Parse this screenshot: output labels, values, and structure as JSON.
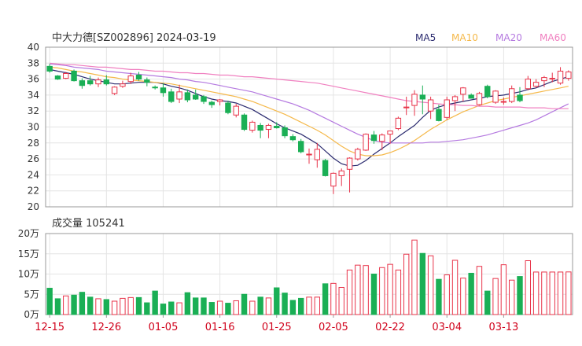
{
  "header": {
    "title": "中大力德[SZ002896] 2024-03-19",
    "legend": [
      {
        "label": "MA5",
        "color": "#2b2b6f"
      },
      {
        "label": "MA10",
        "color": "#f5b94b"
      },
      {
        "label": "MA20",
        "color": "#b57ae0"
      },
      {
        "label": "MA60",
        "color": "#f080c0"
      }
    ]
  },
  "volume_panel": {
    "label": "成交量 105241"
  },
  "colors": {
    "up": "#e8344a",
    "down": "#1aaf55",
    "date": "#d0021b"
  },
  "chart_data": [
    {
      "type": "candlestick",
      "title": "中大力德[SZ002896] 2024-03-19",
      "ylim": [
        20,
        40
      ],
      "yticks": [
        20,
        22,
        24,
        26,
        28,
        30,
        32,
        34,
        36,
        38,
        40
      ],
      "xticks": [
        "12-15",
        "12-26",
        "01-05",
        "01-16",
        "01-25",
        "02-05",
        "02-22",
        "03-04",
        "03-13"
      ],
      "xtick_index": [
        0,
        7,
        14,
        21,
        28,
        35,
        42,
        49,
        56
      ],
      "ohlc": [
        [
          37.6,
          37.9,
          36.8,
          37.0
        ],
        [
          36.4,
          36.5,
          35.9,
          36.0
        ],
        [
          36.1,
          36.9,
          36.0,
          36.7
        ],
        [
          37.0,
          37.2,
          35.7,
          35.8
        ],
        [
          35.8,
          36.1,
          34.8,
          35.2
        ],
        [
          35.8,
          36.4,
          35.2,
          35.4
        ],
        [
          35.4,
          36.2,
          35.0,
          35.9
        ],
        [
          35.9,
          36.5,
          35.2,
          35.4
        ],
        [
          34.2,
          35.1,
          34.0,
          35.0
        ],
        [
          35.1,
          35.8,
          34.9,
          35.4
        ],
        [
          35.7,
          36.8,
          35.4,
          36.4
        ],
        [
          36.5,
          36.9,
          35.8,
          36.0
        ],
        [
          35.9,
          36.2,
          35.1,
          35.6
        ],
        [
          35.0,
          35.2,
          34.7,
          34.9
        ],
        [
          34.9,
          35.5,
          33.8,
          34.3
        ],
        [
          34.4,
          34.8,
          33.0,
          33.2
        ],
        [
          33.5,
          35.3,
          33.0,
          34.4
        ],
        [
          34.3,
          34.7,
          33.1,
          33.4
        ],
        [
          34.0,
          34.7,
          33.4,
          33.5
        ],
        [
          33.8,
          34.0,
          32.9,
          33.2
        ],
        [
          33.1,
          33.3,
          32.4,
          32.8
        ],
        [
          33.2,
          33.5,
          32.7,
          33.4
        ],
        [
          33.0,
          33.3,
          31.6,
          31.8
        ],
        [
          31.5,
          32.9,
          31.2,
          32.6
        ],
        [
          31.5,
          31.7,
          29.5,
          29.7
        ],
        [
          29.6,
          30.8,
          29.3,
          30.6
        ],
        [
          30.2,
          30.5,
          28.6,
          29.6
        ],
        [
          29.7,
          30.4,
          28.6,
          30.2
        ],
        [
          30.1,
          30.6,
          29.8,
          29.9
        ],
        [
          29.9,
          30.2,
          28.6,
          28.9
        ],
        [
          28.8,
          29.1,
          28.2,
          28.4
        ],
        [
          28.2,
          28.5,
          26.7,
          26.9
        ],
        [
          26.5,
          27.3,
          25.4,
          26.6
        ],
        [
          25.9,
          28.0,
          24.9,
          27.2
        ],
        [
          25.8,
          26.0,
          23.8,
          23.9
        ],
        [
          22.6,
          24.3,
          21.6,
          24.2
        ],
        [
          23.9,
          24.8,
          22.6,
          24.5
        ],
        [
          24.7,
          26.2,
          21.8,
          26.1
        ],
        [
          26.0,
          27.4,
          25.8,
          27.2
        ],
        [
          27.1,
          29.2,
          27.0,
          29.1
        ],
        [
          29.0,
          29.5,
          27.9,
          28.3
        ],
        [
          28.2,
          29.2,
          27.1,
          29.0
        ],
        [
          29.1,
          29.5,
          27.9,
          29.5
        ],
        [
          29.8,
          31.3,
          29.6,
          31.1
        ],
        [
          32.4,
          33.8,
          31.5,
          32.5
        ],
        [
          32.7,
          34.6,
          31.4,
          34.1
        ],
        [
          34.0,
          35.2,
          31.6,
          33.5
        ],
        [
          32.0,
          33.8,
          31.0,
          33.4
        ],
        [
          32.2,
          32.8,
          30.7,
          30.8
        ],
        [
          31.2,
          33.8,
          30.9,
          33.4
        ],
        [
          33.3,
          34.0,
          32.0,
          33.8
        ],
        [
          34.1,
          35.0,
          33.2,
          34.9
        ],
        [
          34.0,
          34.2,
          33.6,
          33.6
        ],
        [
          32.8,
          34.4,
          32.7,
          34.2
        ],
        [
          35.1,
          35.3,
          33.6,
          33.8
        ],
        [
          33.1,
          34.6,
          32.9,
          34.5
        ],
        [
          33.1,
          33.7,
          32.8,
          33.2
        ],
        [
          33.2,
          35.2,
          33.0,
          34.8
        ],
        [
          34.0,
          35.0,
          33.1,
          33.3
        ],
        [
          34.8,
          36.4,
          34.6,
          36.0
        ],
        [
          35.1,
          36.0,
          34.9,
          35.6
        ],
        [
          35.8,
          36.4,
          35.0,
          36.2
        ],
        [
          36.1,
          36.8,
          35.6,
          36.1
        ],
        [
          35.5,
          37.5,
          35.3,
          37.0
        ],
        [
          36.1,
          37.1,
          35.8,
          36.9
        ]
      ],
      "volume_ylim": [
        0,
        200000
      ],
      "volume_ytick_labels": [
        "0万",
        "5万",
        "10万",
        "15万",
        "20万"
      ],
      "volume_yticks": [
        0,
        50000,
        100000,
        150000,
        200000
      ],
      "volume": [
        65000,
        39000,
        46000,
        48000,
        55000,
        43000,
        39000,
        37000,
        33000,
        40000,
        42000,
        42000,
        29000,
        58000,
        26000,
        31000,
        29000,
        54000,
        41000,
        41000,
        30000,
        33000,
        28000,
        34000,
        50000,
        33000,
        43000,
        41000,
        66000,
        53000,
        35000,
        40000,
        43000,
        43000,
        76000,
        77000,
        67000,
        110000,
        122000,
        121000,
        100000,
        116000,
        124000,
        110000,
        149000,
        184000,
        151000,
        145000,
        87000,
        98000,
        134000,
        90000,
        102000,
        119000,
        58000,
        89000,
        123000,
        85000,
        94000,
        133000,
        105000,
        105000,
        105000,
        105000,
        105241
      ],
      "series": [
        {
          "name": "MA5",
          "values": [
            37.2,
            37.0,
            36.8,
            36.6,
            36.3,
            36.0,
            35.8,
            35.6,
            35.4,
            35.4,
            35.5,
            35.6,
            35.6,
            35.6,
            35.4,
            35.1,
            34.9,
            34.6,
            34.2,
            33.8,
            33.5,
            33.3,
            33.2,
            33.0,
            32.6,
            32.2,
            31.6,
            31.0,
            30.4,
            29.9,
            29.5,
            29.1,
            28.5,
            27.9,
            27.0,
            26.1,
            25.4,
            25.1,
            25.2,
            25.8,
            26.6,
            27.3,
            28.0,
            28.8,
            29.5,
            30.2,
            31.2,
            32.1,
            32.5,
            32.8,
            33.0,
            33.2,
            33.4,
            33.6,
            33.8,
            33.9,
            34.0,
            34.2,
            34.4,
            34.7,
            34.9,
            35.3,
            35.7,
            36.0,
            36.3
          ]
        },
        {
          "name": "MA10",
          "values": [
            37.5,
            37.4,
            37.2,
            37.0,
            36.9,
            36.7,
            36.5,
            36.3,
            36.2,
            36.0,
            35.9,
            35.8,
            35.7,
            35.6,
            35.5,
            35.4,
            35.2,
            35.0,
            34.8,
            34.6,
            34.4,
            34.2,
            34.0,
            33.8,
            33.5,
            33.2,
            32.8,
            32.4,
            32.0,
            31.6,
            31.1,
            30.6,
            30.1,
            29.6,
            29.0,
            28.3,
            27.6,
            27.0,
            26.6,
            26.4,
            26.4,
            26.5,
            26.8,
            27.2,
            27.7,
            28.3,
            29.0,
            29.7,
            30.3,
            30.9,
            31.4,
            31.9,
            32.3,
            32.7,
            33.0,
            33.3,
            33.5,
            33.7,
            33.9,
            34.1,
            34.3,
            34.5,
            34.7,
            34.9,
            35.1
          ]
        },
        {
          "name": "MA20",
          "values": [
            37.9,
            37.8,
            37.7,
            37.5,
            37.4,
            37.3,
            37.2,
            37.0,
            36.9,
            36.8,
            36.7,
            36.6,
            36.5,
            36.4,
            36.3,
            36.2,
            36.0,
            35.9,
            35.7,
            35.6,
            35.4,
            35.2,
            35.0,
            34.8,
            34.6,
            34.4,
            34.1,
            33.8,
            33.5,
            33.2,
            32.9,
            32.5,
            32.1,
            31.6,
            31.1,
            30.6,
            30.1,
            29.6,
            29.1,
            28.7,
            28.3,
            28.1,
            28.0,
            28.0,
            28.0,
            28.0,
            28.0,
            28.1,
            28.1,
            28.2,
            28.3,
            28.4,
            28.6,
            28.8,
            29.0,
            29.3,
            29.6,
            29.9,
            30.2,
            30.5,
            30.9,
            31.4,
            31.9,
            32.4,
            32.9
          ]
        },
        {
          "name": "MA60",
          "values": [
            38.0,
            37.9,
            37.8,
            37.8,
            37.7,
            37.6,
            37.5,
            37.5,
            37.4,
            37.3,
            37.2,
            37.2,
            37.1,
            37.0,
            37.0,
            36.9,
            36.8,
            36.8,
            36.7,
            36.7,
            36.6,
            36.5,
            36.5,
            36.4,
            36.3,
            36.3,
            36.2,
            36.1,
            36.0,
            35.9,
            35.8,
            35.7,
            35.6,
            35.5,
            35.3,
            35.1,
            34.9,
            34.7,
            34.5,
            34.3,
            34.1,
            33.9,
            33.7,
            33.5,
            33.3,
            33.2,
            33.1,
            33.0,
            32.9,
            32.8,
            32.8,
            32.7,
            32.7,
            32.6,
            32.6,
            32.5,
            32.5,
            32.5,
            32.5,
            32.4,
            32.4,
            32.4,
            32.3,
            32.3,
            32.3
          ]
        }
      ]
    }
  ]
}
